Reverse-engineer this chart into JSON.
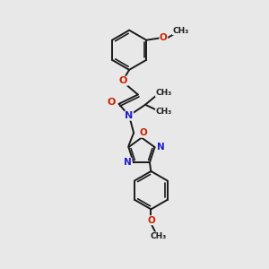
{
  "bg_color": "#e8e8e8",
  "bond_color": "#1a1a1a",
  "N_color": "#2020cc",
  "O_color": "#cc2000",
  "fig_size": [
    3.0,
    3.0
  ],
  "dpi": 100,
  "xlim": [
    0,
    10
  ],
  "ylim": [
    0,
    10
  ]
}
